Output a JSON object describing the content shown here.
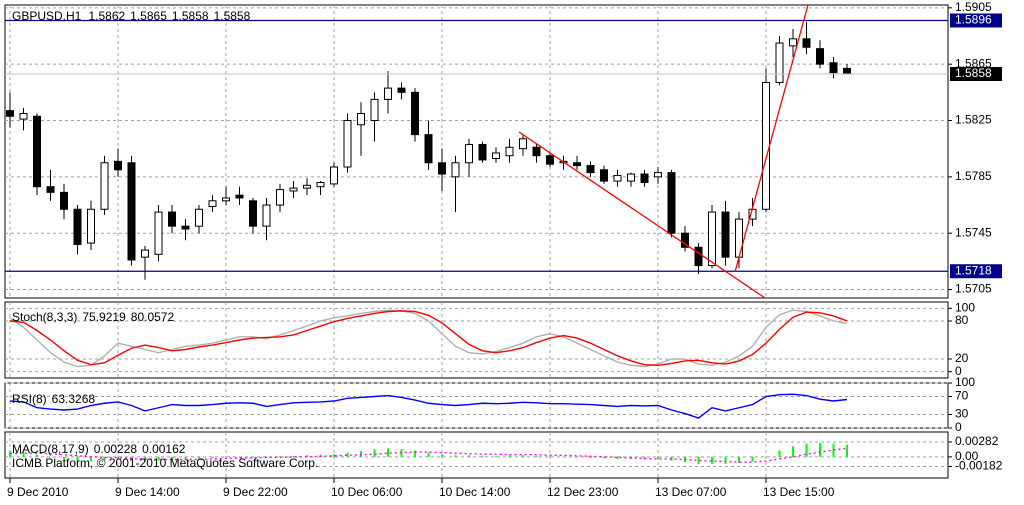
{
  "chart_data": [
    {
      "type": "candlestick",
      "title": "GBPUSD,H1",
      "categories": [
        "9 Dec 2010",
        null,
        null,
        null,
        null,
        null,
        null,
        null,
        "9 Dec 14:00",
        null,
        null,
        null,
        null,
        null,
        null,
        null,
        "9 Dec 22:00",
        null,
        null,
        null,
        null,
        null,
        null,
        null,
        "10 Dec 06:00",
        null,
        null,
        null,
        null,
        null,
        null,
        null,
        "10 Dec 14:00",
        null,
        null,
        null,
        null,
        null,
        null,
        null,
        "12 Dec 23:00",
        null,
        null,
        null,
        null,
        null,
        null,
        null,
        "13 Dec 07:00",
        null,
        null,
        null,
        null,
        null,
        null,
        null,
        "13 Dec 15:00",
        null,
        null,
        null,
        null,
        null,
        null
      ],
      "open": [
        1.5832,
        1.5826,
        1.5828,
        1.5778,
        1.5774,
        1.5762,
        1.5738,
        1.5762,
        1.5796,
        1.5795,
        1.5728,
        1.573,
        1.576,
        1.575,
        1.575,
        1.5764,
        1.5768,
        1.5772,
        1.5768,
        1.575,
        1.5765,
        1.5775,
        1.5777,
        1.5778,
        1.578,
        1.5792,
        1.5822,
        1.5825,
        1.584,
        1.5848,
        1.5845,
        1.5815,
        1.5795,
        1.5785,
        1.5795,
        1.5808,
        1.5798,
        1.58,
        1.5805,
        1.5806,
        1.58,
        1.5795,
        1.5795,
        1.5793,
        1.579,
        1.5782,
        1.5782,
        1.5787,
        1.5785,
        1.5788,
        1.5745,
        1.5735,
        1.5722,
        1.576,
        1.5728,
        1.5755,
        1.5762,
        1.5852,
        1.5878,
        1.5883,
        1.5876,
        1.5866,
        1.5862
      ],
      "high": [
        1.5845,
        1.5834,
        1.583,
        1.579,
        1.578,
        1.5765,
        1.5768,
        1.58,
        1.5805,
        1.58,
        1.5736,
        1.5765,
        1.5765,
        1.5755,
        1.5765,
        1.5772,
        1.5778,
        1.5778,
        1.577,
        1.577,
        1.578,
        1.5782,
        1.5784,
        1.5782,
        1.5795,
        1.583,
        1.5838,
        1.5845,
        1.586,
        1.5852,
        1.5848,
        1.5825,
        1.5805,
        1.58,
        1.5812,
        1.581,
        1.5806,
        1.5812,
        1.5815,
        1.5808,
        1.5803,
        1.58,
        1.58,
        1.5796,
        1.5793,
        1.579,
        1.5788,
        1.579,
        1.5792,
        1.579,
        1.575,
        1.5738,
        1.5765,
        1.5768,
        1.576,
        1.577,
        1.5862,
        1.5885,
        1.589,
        1.5895,
        1.5882,
        1.587,
        1.5865
      ],
      "low": [
        1.582,
        1.5818,
        1.5772,
        1.5768,
        1.5755,
        1.573,
        1.5733,
        1.5758,
        1.5785,
        1.5722,
        1.5712,
        1.5725,
        1.5745,
        1.574,
        1.5745,
        1.576,
        1.5765,
        1.5765,
        1.5745,
        1.574,
        1.576,
        1.577,
        1.5772,
        1.5772,
        1.5778,
        1.5788,
        1.58,
        1.581,
        1.583,
        1.584,
        1.581,
        1.579,
        1.5775,
        1.576,
        1.5785,
        1.5795,
        1.5795,
        1.5795,
        1.58,
        1.5795,
        1.5792,
        1.579,
        1.579,
        1.5785,
        1.578,
        1.5778,
        1.5778,
        1.5778,
        1.578,
        1.5742,
        1.5732,
        1.5716,
        1.572,
        1.5722,
        1.572,
        1.575,
        1.576,
        1.585,
        1.587,
        1.5872,
        1.5862,
        1.5855,
        1.5858
      ],
      "close": [
        1.5828,
        1.583,
        1.5778,
        1.5774,
        1.5762,
        1.5737,
        1.5762,
        1.5795,
        1.579,
        1.5726,
        1.5733,
        1.576,
        1.575,
        1.5748,
        1.5762,
        1.5768,
        1.577,
        1.577,
        1.575,
        1.5765,
        1.5776,
        1.5777,
        1.5779,
        1.5781,
        1.5792,
        1.5825,
        1.583,
        1.584,
        1.5848,
        1.5845,
        1.5815,
        1.5795,
        1.5787,
        1.5795,
        1.5808,
        1.5797,
        1.5802,
        1.5806,
        1.5812,
        1.58,
        1.5794,
        1.5796,
        1.5793,
        1.5788,
        1.5782,
        1.5786,
        1.5787,
        1.5781,
        1.5788,
        1.5745,
        1.5735,
        1.5722,
        1.576,
        1.5728,
        1.5755,
        1.5762,
        1.5852,
        1.588,
        1.5883,
        1.5877,
        1.5865,
        1.5859,
        1.5858
      ],
      "up_color": "#ffffff",
      "down_color": "#000000",
      "ylim": [
        1.5699,
        1.5907
      ],
      "yticks": [
        1.5705,
        1.5745,
        1.5785,
        1.5825,
        1.5865,
        1.5905
      ],
      "grid": true,
      "hlines": [
        {
          "value": 1.5896,
          "color": "#00008b"
        },
        {
          "value": 1.5718,
          "color": "#00008b"
        }
      ]
    },
    {
      "type": "line",
      "title": "Stoch(8,3,3)",
      "series": [
        {
          "color": "#b0b0b0",
          "values": [
            85,
            70,
            50,
            30,
            15,
            8,
            10,
            25,
            45,
            40,
            35,
            30,
            35,
            40,
            42,
            45,
            50,
            55,
            55,
            52,
            58,
            65,
            72,
            80,
            85,
            88,
            92,
            95,
            97,
            96,
            92,
            80,
            60,
            40,
            30,
            28,
            32,
            38,
            45,
            55,
            60,
            55,
            45,
            35,
            25,
            15,
            10,
            8,
            12,
            20,
            20,
            12,
            10,
            15,
            25,
            40,
            70,
            90,
            97,
            95,
            88,
            80,
            75.9219
          ]
        },
        {
          "color": "#ff0000",
          "values": [
            80,
            78,
            65,
            50,
            33,
            18,
            11,
            14,
            26,
            37,
            42,
            38,
            33,
            35,
            39,
            42,
            46,
            50,
            53,
            54,
            55,
            58,
            65,
            72,
            79,
            84,
            88,
            92,
            95,
            96,
            95,
            89,
            77,
            60,
            43,
            33,
            30,
            33,
            38,
            46,
            53,
            57,
            53,
            45,
            35,
            25,
            17,
            11,
            10,
            13,
            17,
            18,
            14,
            12,
            17,
            27,
            45,
            67,
            86,
            94,
            93,
            88,
            80.0572
          ]
        }
      ],
      "ylim": [
        -10,
        110
      ],
      "yticks": [
        0,
        20,
        80,
        100
      ],
      "grid": true
    },
    {
      "type": "line",
      "title": "RSI(8)",
      "series": [
        {
          "color": "#0000ff",
          "values": [
            60,
            58,
            45,
            42,
            40,
            42,
            50,
            55,
            58,
            50,
            38,
            45,
            52,
            50,
            50,
            52,
            55,
            56,
            55,
            48,
            52,
            56,
            57,
            58,
            60,
            66,
            68,
            70,
            72,
            68,
            62,
            55,
            52,
            50,
            52,
            55,
            54,
            55,
            57,
            56,
            54,
            54,
            53,
            52,
            50,
            48,
            50,
            49,
            50,
            40,
            32,
            22,
            45,
            38,
            45,
            52,
            70,
            74,
            75,
            72,
            64,
            60,
            63.3268
          ]
        }
      ],
      "ylim": [
        0,
        100
      ],
      "yticks": [
        0,
        30,
        70,
        100
      ],
      "grid": true
    },
    {
      "type": "combo",
      "title": "MACD(8,17,9)",
      "series": [
        {
          "type": "bar",
          "color": "#00ff00",
          "values": [
            0.001,
            0.0008,
            0.0004,
            0.0,
            -0.0004,
            -0.0008,
            -0.0009,
            -0.0006,
            -0.0003,
            -0.0006,
            -0.0008,
            -0.0007,
            -0.0006,
            -0.0005,
            -0.0003,
            -0.0002,
            -0.0001,
            0.0,
            0.0,
            -0.0001,
            0.0001,
            0.0002,
            0.0003,
            0.0004,
            0.0005,
            0.0008,
            0.0011,
            0.0014,
            0.0016,
            0.0015,
            0.0012,
            0.0008,
            0.0005,
            0.0003,
            0.0003,
            0.0002,
            0.0002,
            0.0003,
            0.0003,
            0.0002,
            0.0001,
            0.0,
            -0.0001,
            -0.0002,
            -0.0003,
            -0.0004,
            -0.0004,
            -0.0005,
            -0.0005,
            -0.0007,
            -0.001,
            -0.0014,
            -0.0013,
            -0.0013,
            -0.0011,
            -0.0009,
            0.0,
            0.0012,
            0.002,
            0.0025,
            0.0026,
            0.0025,
            0.00228
          ]
        },
        {
          "type": "line",
          "color": "#ff00ff",
          "values": [
            0.0006,
            0.0007,
            0.0007,
            0.0006,
            0.0004,
            0.0002,
            0.0,
            -0.0001,
            -0.0002,
            -0.0003,
            -0.0004,
            -0.0005,
            -0.0005,
            -0.0005,
            -0.0005,
            -0.0004,
            -0.0003,
            -0.0002,
            -0.0002,
            -0.0001,
            -0.0001,
            0.0,
            0.0,
            0.0001,
            0.0002,
            0.0003,
            0.0004,
            0.0005,
            0.0007,
            0.0008,
            0.0009,
            0.0009,
            0.0008,
            0.0007,
            0.0006,
            0.0005,
            0.0005,
            0.0004,
            0.0004,
            0.0004,
            0.0003,
            0.0003,
            0.0002,
            0.0001,
            0.0,
            -0.0001,
            -0.0002,
            -0.0003,
            -0.0004,
            -0.0004,
            -0.0005,
            -0.0007,
            -0.0008,
            -0.0009,
            -0.001,
            -0.001,
            -0.0008,
            -0.0004,
            0.0,
            0.0005,
            0.0009,
            0.0013,
            0.00162
          ]
        }
      ],
      "ylim": [
        -0.004,
        0.0047
      ],
      "yticks": [
        -0.00182,
        {
          "value": 0,
          "label": "0.00"
        },
        0.00282
      ],
      "grid": true
    }
  ],
  "copyright": "ICMB Platform, © 2001-2010 MetaQuotes Software Corp."
}
